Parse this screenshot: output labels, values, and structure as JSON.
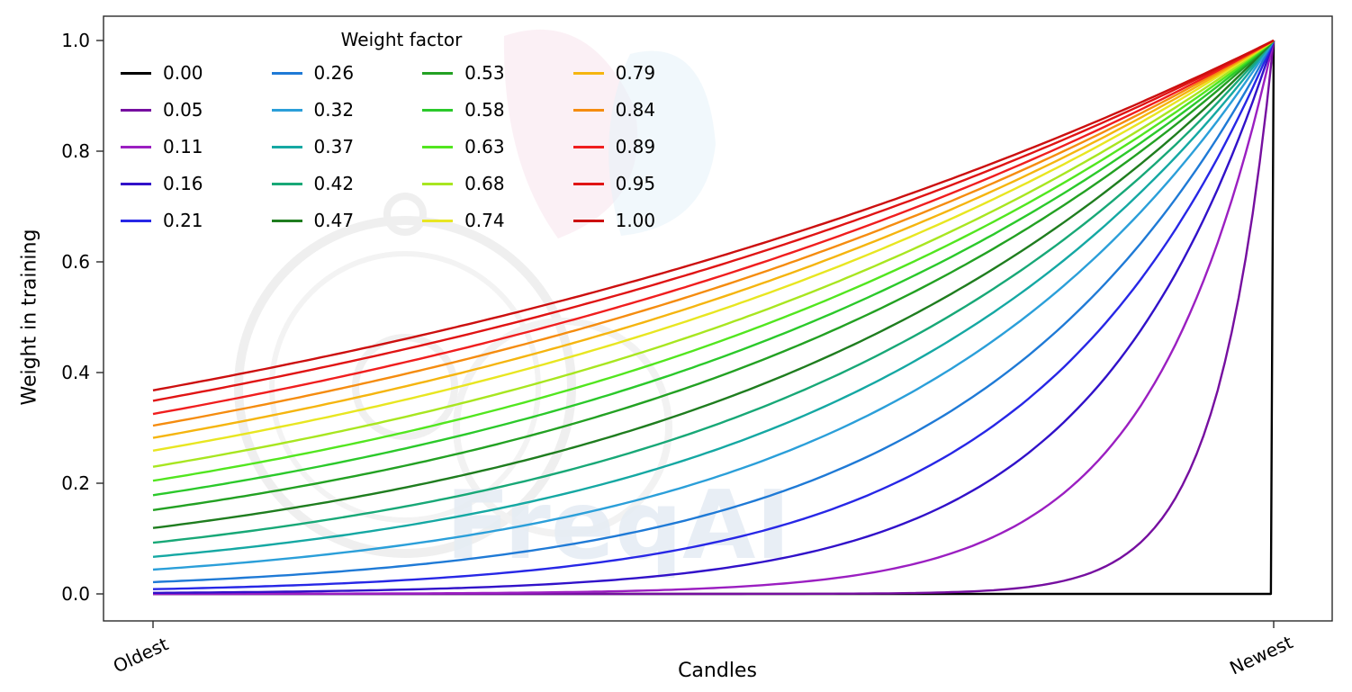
{
  "chart_data": {
    "type": "line",
    "title": "",
    "xlabel": "Candles",
    "ylabel": "Weight in training",
    "x_tick_labels": [
      "Oldest",
      "Newest"
    ],
    "y_tick_labels": [
      "0.0",
      "0.2",
      "0.4",
      "0.6",
      "0.8",
      "1.0"
    ],
    "ylim": [
      -0.05,
      1.05
    ],
    "grid": false,
    "legend": {
      "title": "Weight factor",
      "columns": 4,
      "rows": 5,
      "position": "upper left",
      "fill_order": "column-major"
    },
    "formula": "weight(t) = exp(-(1 - t) / factor); t = 0 at oldest candle, t = 1 at newest candle; every curve converges to weight 1.0 at the newest candle; factor 0.00 stays at 0 until the final candle",
    "series": [
      {
        "label": "0.00",
        "factor": 0.0,
        "color": "#000000",
        "y_at_oldest": 0.0,
        "y_at_newest": 1.0
      },
      {
        "label": "0.05",
        "factor": 0.05,
        "color": "#760fa0",
        "y_at_oldest": 0.0,
        "y_at_newest": 1.0
      },
      {
        "label": "0.11",
        "factor": 0.11,
        "color": "#9b1fc1",
        "y_at_oldest": 0.0,
        "y_at_newest": 1.0
      },
      {
        "label": "0.16",
        "factor": 0.16,
        "color": "#3111c9",
        "y_at_oldest": 0.002,
        "y_at_newest": 1.0
      },
      {
        "label": "0.21",
        "factor": 0.21,
        "color": "#2727e6",
        "y_at_oldest": 0.009,
        "y_at_newest": 1.0
      },
      {
        "label": "0.26",
        "factor": 0.26,
        "color": "#1f7ad6",
        "y_at_oldest": 0.021,
        "y_at_newest": 1.0
      },
      {
        "label": "0.32",
        "factor": 0.32,
        "color": "#2b9fd9",
        "y_at_oldest": 0.044,
        "y_at_newest": 1.0
      },
      {
        "label": "0.37",
        "factor": 0.37,
        "color": "#15a8a3",
        "y_at_oldest": 0.067,
        "y_at_newest": 1.0
      },
      {
        "label": "0.42",
        "factor": 0.42,
        "color": "#18a877",
        "y_at_oldest": 0.092,
        "y_at_newest": 1.0
      },
      {
        "label": "0.47",
        "factor": 0.47,
        "color": "#1f7d1f",
        "y_at_oldest": 0.119,
        "y_at_newest": 1.0
      },
      {
        "label": "0.53",
        "factor": 0.53,
        "color": "#23a123",
        "y_at_oldest": 0.152,
        "y_at_newest": 1.0
      },
      {
        "label": "0.58",
        "factor": 0.58,
        "color": "#2bc92b",
        "y_at_oldest": 0.178,
        "y_at_newest": 1.0
      },
      {
        "label": "0.63",
        "factor": 0.63,
        "color": "#52e61f",
        "y_at_oldest": 0.204,
        "y_at_newest": 1.0
      },
      {
        "label": "0.68",
        "factor": 0.68,
        "color": "#a8e620",
        "y_at_oldest": 0.23,
        "y_at_newest": 1.0
      },
      {
        "label": "0.74",
        "factor": 0.74,
        "color": "#e8e621",
        "y_at_oldest": 0.259,
        "y_at_newest": 1.0
      },
      {
        "label": "0.79",
        "factor": 0.79,
        "color": "#f5b50f",
        "y_at_oldest": 0.282,
        "y_at_newest": 1.0
      },
      {
        "label": "0.84",
        "factor": 0.84,
        "color": "#f58c0f",
        "y_at_oldest": 0.304,
        "y_at_newest": 1.0
      },
      {
        "label": "0.89",
        "factor": 0.89,
        "color": "#f01e1e",
        "y_at_oldest": 0.325,
        "y_at_newest": 1.0
      },
      {
        "label": "0.95",
        "factor": 0.95,
        "color": "#e01414",
        "y_at_oldest": 0.349,
        "y_at_newest": 1.0
      },
      {
        "label": "1.00",
        "factor": 1.0,
        "color": "#cc0f0f",
        "y_at_oldest": 0.368,
        "y_at_newest": 1.0
      }
    ]
  },
  "watermark": {
    "text": "FreqAI"
  }
}
